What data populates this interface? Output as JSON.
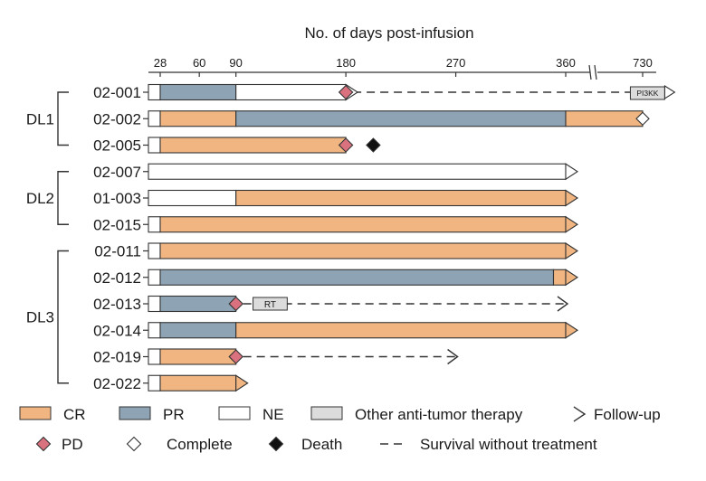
{
  "chart_data": {
    "type": "swimmer",
    "title": "No. of days post-infusion",
    "xlabel": "No. of days post-infusion",
    "x_ticks": [
      "28",
      "60",
      "90",
      "180",
      "270",
      "360",
      "730"
    ],
    "x_axis_break": "between 360 and 730",
    "groups": [
      {
        "label": "DL1",
        "patients": [
          "02-001",
          "02-002",
          "02-005"
        ]
      },
      {
        "label": "DL2",
        "patients": [
          "02-007",
          "01-003",
          "02-015"
        ]
      },
      {
        "label": "DL3",
        "patients": [
          "02-011",
          "02-012",
          "02-013",
          "02-014",
          "02-019",
          "02-022"
        ]
      }
    ],
    "patients": [
      {
        "id": "02-001",
        "segments": [
          {
            "status": "NE",
            "from": 0,
            "to": 28
          },
          {
            "status": "PR",
            "from": 28,
            "to": 90
          },
          {
            "status": "NE",
            "from": 90,
            "to": 180
          }
        ],
        "pd_day": 180,
        "dashed_to": 735,
        "therapy": {
          "label": "PI3KK",
          "from": 720,
          "to": 745
        },
        "end": "followup",
        "end_day": 750
      },
      {
        "id": "02-002",
        "segments": [
          {
            "status": "NE",
            "from": 0,
            "to": 28
          },
          {
            "status": "CR",
            "from": 28,
            "to": 90
          },
          {
            "status": "PR",
            "from": 90,
            "to": 360
          },
          {
            "status": "CR",
            "from": 360,
            "to": 730
          }
        ],
        "end": "complete",
        "end_day": 730
      },
      {
        "id": "02-005",
        "segments": [
          {
            "status": "NE",
            "from": 0,
            "to": 28
          },
          {
            "status": "CR",
            "from": 28,
            "to": 180
          }
        ],
        "pd_day": 180,
        "death_day": 198,
        "end": "none"
      },
      {
        "id": "02-007",
        "segments": [
          {
            "status": "NE",
            "from": 0,
            "to": 360
          }
        ],
        "end": "followup",
        "end_day": 360
      },
      {
        "id": "01-003",
        "segments": [
          {
            "status": "NE",
            "from": 0,
            "to": 90
          },
          {
            "status": "CR",
            "from": 90,
            "to": 360
          }
        ],
        "end": "followup",
        "end_day": 360
      },
      {
        "id": "02-015",
        "segments": [
          {
            "status": "NE",
            "from": 0,
            "to": 28
          },
          {
            "status": "CR",
            "from": 28,
            "to": 360
          }
        ],
        "end": "followup",
        "end_day": 360
      },
      {
        "id": "02-011",
        "segments": [
          {
            "status": "NE",
            "from": 0,
            "to": 28
          },
          {
            "status": "CR",
            "from": 28,
            "to": 360
          }
        ],
        "end": "followup",
        "end_day": 360
      },
      {
        "id": "02-012",
        "segments": [
          {
            "status": "NE",
            "from": 0,
            "to": 28
          },
          {
            "status": "PR",
            "from": 28,
            "to": 350
          },
          {
            "status": "CR",
            "from": 350,
            "to": 360
          }
        ],
        "end": "followup",
        "end_day": 360
      },
      {
        "id": "02-013",
        "segments": [
          {
            "status": "NE",
            "from": 0,
            "to": 28
          },
          {
            "status": "PR",
            "from": 28,
            "to": 90
          }
        ],
        "pd_day": 90,
        "therapy": {
          "label": "RT",
          "from": 104,
          "to": 132
        },
        "dashed_to": 360,
        "end": "arrow",
        "end_day": 360
      },
      {
        "id": "02-014",
        "segments": [
          {
            "status": "NE",
            "from": 0,
            "to": 28
          },
          {
            "status": "PR",
            "from": 28,
            "to": 90
          },
          {
            "status": "CR",
            "from": 90,
            "to": 360
          }
        ],
        "end": "followup",
        "end_day": 360
      },
      {
        "id": "02-019",
        "segments": [
          {
            "status": "NE",
            "from": 0,
            "to": 28
          },
          {
            "status": "CR",
            "from": 28,
            "to": 90
          }
        ],
        "pd_day": 90,
        "dashed_to": 270,
        "end": "arrow",
        "end_day": 270
      },
      {
        "id": "02-022",
        "segments": [
          {
            "status": "NE",
            "from": 0,
            "to": 28
          },
          {
            "status": "CR",
            "from": 28,
            "to": 90
          }
        ],
        "end": "followup",
        "end_day": 90
      }
    ],
    "colors": {
      "CR": "#f1b581",
      "PR": "#8ea3b4",
      "NE": "#ffffff",
      "therapy": "#dcdcdc",
      "PD": "#d9717f",
      "outline": "#333333"
    },
    "legend": [
      {
        "key": "CR",
        "label": "CR"
      },
      {
        "key": "PR",
        "label": "PR"
      },
      {
        "key": "NE",
        "label": "NE"
      },
      {
        "key": "therapy",
        "label": "Other anti-tumor therapy"
      },
      {
        "key": "followup",
        "label": "Follow-up"
      },
      {
        "key": "PD",
        "label": "PD"
      },
      {
        "key": "complete",
        "label": "Complete"
      },
      {
        "key": "death",
        "label": "Death"
      },
      {
        "key": "dashed",
        "label": "Survival without treatment"
      }
    ]
  }
}
